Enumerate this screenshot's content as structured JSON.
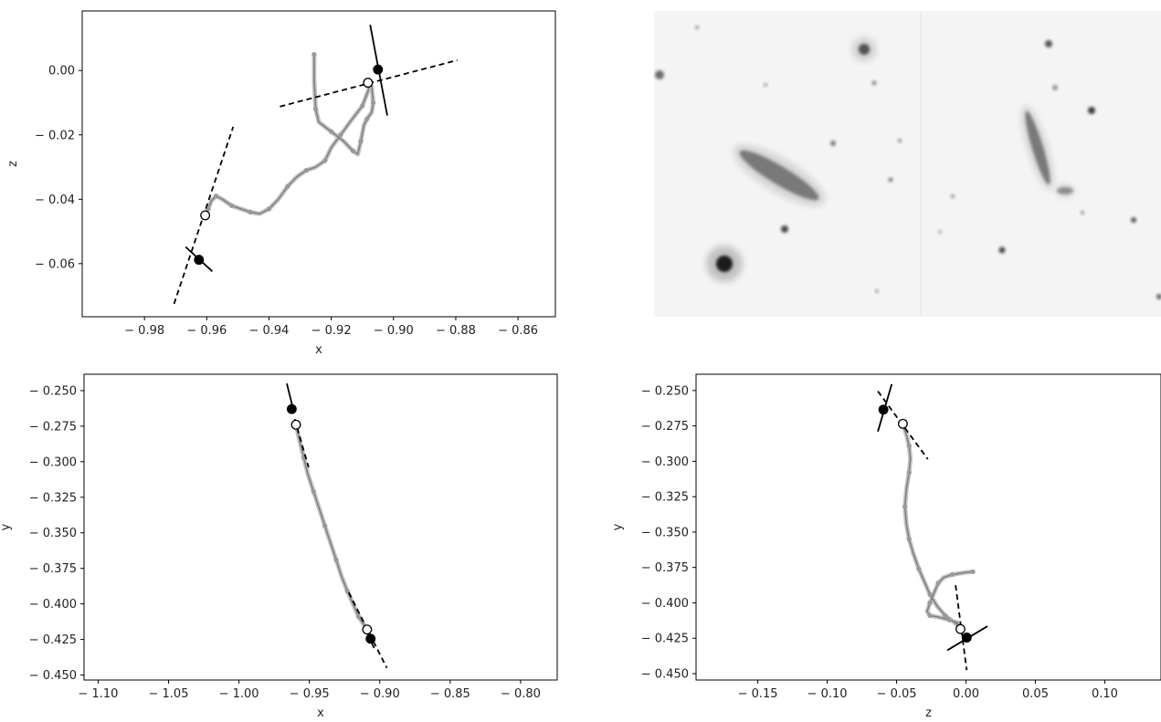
{
  "chart_data": [
    {
      "type": "line",
      "panel": "top-left",
      "xlabel": "x",
      "ylabel": "z",
      "xlim": [
        -1.0,
        -0.848
      ],
      "ylim": [
        -0.0765,
        0.0185
      ],
      "xticks": [
        -0.98,
        -0.96,
        -0.94,
        -0.92,
        -0.9,
        -0.88,
        -0.86
      ],
      "yticks": [
        0.0,
        -0.02,
        -0.04,
        -0.06
      ],
      "series": [
        {
          "role": "trajectory",
          "color": "#888888",
          "points": [
            [
              -0.9255,
              0.005
            ],
            [
              -0.9255,
              -0.003
            ],
            [
              -0.925,
              -0.012
            ],
            [
              -0.924,
              -0.016
            ],
            [
              -0.92,
              -0.019
            ],
            [
              -0.916,
              -0.022
            ],
            [
              -0.913,
              -0.025
            ],
            [
              -0.9115,
              -0.026
            ],
            [
              -0.9105,
              -0.022
            ],
            [
              -0.9095,
              -0.017
            ],
            [
              -0.9085,
              -0.015
            ],
            [
              -0.907,
              -0.013
            ],
            [
              -0.9065,
              -0.01
            ],
            [
              -0.907,
              -0.005
            ],
            [
              -0.908,
              -0.003
            ],
            [
              -0.908,
              -0.006
            ],
            [
              -0.91,
              -0.011
            ],
            [
              -0.914,
              -0.016
            ],
            [
              -0.917,
              -0.02
            ],
            [
              -0.92,
              -0.024
            ],
            [
              -0.922,
              -0.028
            ],
            [
              -0.925,
              -0.03
            ],
            [
              -0.928,
              -0.031
            ],
            [
              -0.931,
              -0.033
            ],
            [
              -0.934,
              -0.036
            ],
            [
              -0.937,
              -0.04
            ],
            [
              -0.94,
              -0.043
            ],
            [
              -0.943,
              -0.0445
            ],
            [
              -0.946,
              -0.044
            ],
            [
              -0.949,
              -0.043
            ],
            [
              -0.952,
              -0.042
            ],
            [
              -0.955,
              -0.04
            ],
            [
              -0.957,
              -0.039
            ],
            [
              -0.9585,
              -0.0405
            ],
            [
              -0.9595,
              -0.043
            ],
            [
              -0.9605,
              -0.045
            ]
          ]
        }
      ],
      "lines": [
        {
          "style": "dashed",
          "from": [
            -0.9365,
            -0.0112
          ],
          "to": [
            -0.8795,
            0.0032
          ]
        },
        {
          "style": "solid",
          "from": [
            -0.9075,
            0.0142
          ],
          "to": [
            -0.902,
            -0.014
          ]
        },
        {
          "style": "dashed",
          "from": [
            -0.9705,
            -0.0725
          ],
          "to": [
            -0.9515,
            -0.0175
          ]
        },
        {
          "style": "solid",
          "from": [
            -0.9668,
            -0.0548
          ],
          "to": [
            -0.9582,
            -0.0624
          ]
        }
      ],
      "markers": [
        {
          "fill": "white",
          "x": -0.9082,
          "y": -0.0038
        },
        {
          "fill": "black",
          "x": -0.905,
          "y": 0.0003
        },
        {
          "fill": "white",
          "x": -0.9605,
          "y": -0.045
        },
        {
          "fill": "black",
          "x": -0.9625,
          "y": -0.0588
        }
      ]
    },
    {
      "type": "line",
      "panel": "bottom-left",
      "xlabel": "x",
      "ylabel": "y",
      "xlim": [
        -1.11,
        -0.774
      ],
      "ylim": [
        -0.4535,
        -0.2385
      ],
      "xticks": [
        -1.1,
        -1.05,
        -1.0,
        -0.95,
        -0.9,
        -0.85,
        -0.8
      ],
      "yticks": [
        -0.25,
        -0.275,
        -0.3,
        -0.325,
        -0.35,
        -0.375,
        -0.4,
        -0.425,
        -0.45
      ],
      "series": [
        {
          "role": "trajectory",
          "color": "#888888",
          "points": [
            [
              -0.9595,
              -0.274
            ],
            [
              -0.957,
              -0.285
            ],
            [
              -0.954,
              -0.297
            ],
            [
              -0.951,
              -0.309
            ],
            [
              -0.947,
              -0.321
            ],
            [
              -0.943,
              -0.333
            ],
            [
              -0.939,
              -0.345
            ],
            [
              -0.935,
              -0.357
            ],
            [
              -0.931,
              -0.369
            ],
            [
              -0.927,
              -0.381
            ],
            [
              -0.923,
              -0.391
            ],
            [
              -0.919,
              -0.4
            ],
            [
              -0.915,
              -0.409
            ],
            [
              -0.911,
              -0.415
            ],
            [
              -0.909,
              -0.418
            ]
          ]
        }
      ],
      "lines": [
        {
          "style": "solid",
          "from": [
            -0.966,
            -0.245
          ],
          "to": [
            -0.961,
            -0.265
          ]
        },
        {
          "style": "dashed",
          "from": [
            -0.9605,
            -0.27
          ],
          "to": [
            -0.9505,
            -0.304
          ]
        },
        {
          "style": "dashed",
          "from": [
            -0.922,
            -0.392
          ],
          "to": [
            -0.895,
            -0.445
          ]
        },
        {
          "style": "solid",
          "from": [
            -0.91,
            -0.418
          ],
          "to": [
            -0.904,
            -0.431
          ]
        }
      ],
      "markers": [
        {
          "fill": "black",
          "x": -0.9625,
          "y": -0.263
        },
        {
          "fill": "white",
          "x": -0.9595,
          "y": -0.274
        },
        {
          "fill": "white",
          "x": -0.909,
          "y": -0.418
        },
        {
          "fill": "black",
          "x": -0.9065,
          "y": -0.4245
        }
      ]
    },
    {
      "type": "line",
      "panel": "bottom-right",
      "xlabel": "z",
      "ylabel": "y",
      "xlim": [
        -0.1945,
        0.1405
      ],
      "ylim": [
        -0.4545,
        -0.2385
      ],
      "xticks": [
        -0.15,
        -0.1,
        -0.05,
        0.0,
        0.05,
        0.1
      ],
      "yticks": [
        -0.25,
        -0.275,
        -0.3,
        -0.325,
        -0.35,
        -0.375,
        -0.4,
        -0.425,
        -0.45
      ],
      "series": [
        {
          "role": "trajectory",
          "color": "#888888",
          "points": [
            [
              0.005,
              -0.378
            ],
            [
              0.0,
              -0.3785
            ],
            [
              -0.01,
              -0.38
            ],
            [
              -0.016,
              -0.382
            ],
            [
              -0.02,
              -0.386
            ],
            [
              -0.023,
              -0.393
            ],
            [
              -0.026,
              -0.4
            ],
            [
              -0.028,
              -0.406
            ],
            [
              -0.026,
              -0.409
            ],
            [
              -0.02,
              -0.41
            ],
            [
              -0.012,
              -0.412
            ],
            [
              -0.006,
              -0.414
            ],
            [
              -0.004,
              -0.418
            ],
            [
              -0.008,
              -0.414
            ],
            [
              -0.015,
              -0.409
            ],
            [
              -0.021,
              -0.402
            ],
            [
              -0.026,
              -0.394
            ],
            [
              -0.03,
              -0.385
            ],
            [
              -0.034,
              -0.376
            ],
            [
              -0.038,
              -0.365
            ],
            [
              -0.041,
              -0.355
            ],
            [
              -0.043,
              -0.344
            ],
            [
              -0.044,
              -0.332
            ],
            [
              -0.043,
              -0.32
            ],
            [
              -0.041,
              -0.308
            ],
            [
              -0.04,
              -0.298
            ],
            [
              -0.041,
              -0.289
            ],
            [
              -0.043,
              -0.281
            ],
            [
              -0.0455,
              -0.274
            ]
          ]
        }
      ],
      "lines": [
        {
          "style": "dashed",
          "from": [
            -0.0635,
            -0.2505
          ],
          "to": [
            -0.0275,
            -0.2985
          ]
        },
        {
          "style": "solid",
          "from": [
            -0.0535,
            -0.2455
          ],
          "to": [
            -0.0635,
            -0.279
          ]
        },
        {
          "style": "dashed",
          "from": [
            -0.0075,
            -0.3875
          ],
          "to": [
            0.0005,
            -0.4475
          ]
        },
        {
          "style": "solid",
          "from": [
            -0.0135,
            -0.4335
          ],
          "to": [
            0.0155,
            -0.4165
          ]
        }
      ],
      "markers": [
        {
          "fill": "white",
          "x": -0.0455,
          "y": -0.2735
        },
        {
          "fill": "black",
          "x": -0.0595,
          "y": -0.2635
        },
        {
          "fill": "white",
          "x": -0.004,
          "y": -0.4185
        },
        {
          "fill": "black",
          "x": 0.0005,
          "y": -0.4245
        }
      ]
    }
  ],
  "image_panel": {
    "description_free": true,
    "blobs": [
      {
        "kind": "star",
        "cx": 722,
        "cy": 82,
        "r": 5,
        "opacity": 0.55
      },
      {
        "kind": "star",
        "cx": 763,
        "cy": 30,
        "r": 2,
        "opacity": 0.4
      },
      {
        "kind": "star",
        "cx": 946,
        "cy": 54,
        "r": 6,
        "opacity": 0.6
      },
      {
        "kind": "star",
        "cx": 838,
        "cy": 93,
        "r": 2,
        "opacity": 0.35
      },
      {
        "kind": "star",
        "cx": 957,
        "cy": 91,
        "r": 2.5,
        "opacity": 0.45
      },
      {
        "kind": "star",
        "cx": 912,
        "cy": 157,
        "r": 3,
        "opacity": 0.5
      },
      {
        "kind": "star",
        "cx": 985,
        "cy": 154,
        "r": 2,
        "opacity": 0.45
      },
      {
        "kind": "star",
        "cx": 975,
        "cy": 197,
        "r": 2.5,
        "opacity": 0.5
      },
      {
        "kind": "star",
        "cx": 859,
        "cy": 251,
        "r": 4,
        "opacity": 0.7
      },
      {
        "kind": "star",
        "cx": 960,
        "cy": 319,
        "r": 2,
        "opacity": 0.35
      },
      {
        "kind": "star",
        "cx": 793,
        "cy": 289,
        "r": 9,
        "opacity": 0.85
      },
      {
        "kind": "star",
        "cx": 1148,
        "cy": 48,
        "r": 4,
        "opacity": 0.65
      },
      {
        "kind": "star",
        "cx": 1195,
        "cy": 121,
        "r": 4,
        "opacity": 0.75
      },
      {
        "kind": "star",
        "cx": 1155,
        "cy": 96,
        "r": 3,
        "opacity": 0.4
      },
      {
        "kind": "star",
        "cx": 1043,
        "cy": 215,
        "r": 2,
        "opacity": 0.4
      },
      {
        "kind": "star",
        "cx": 1097,
        "cy": 274,
        "r": 3.5,
        "opacity": 0.7
      },
      {
        "kind": "star",
        "cx": 1241,
        "cy": 241,
        "r": 3,
        "opacity": 0.65
      },
      {
        "kind": "star",
        "cx": 1185,
        "cy": 233,
        "r": 2,
        "opacity": 0.4
      },
      {
        "kind": "star",
        "cx": 1269,
        "cy": 325,
        "r": 3,
        "opacity": 0.6
      },
      {
        "kind": "star",
        "cx": 1029,
        "cy": 254,
        "r": 2,
        "opacity": 0.3
      },
      {
        "kind": "galaxy",
        "cx": 853,
        "cy": 192,
        "rx": 50,
        "ry": 10,
        "rotate": 31,
        "opacity": 0.55
      },
      {
        "kind": "galaxy",
        "cx": 1136,
        "cy": 162,
        "rx": 42,
        "ry": 6,
        "rotate": 73,
        "opacity": 0.55
      },
      {
        "kind": "galaxy",
        "cx": 1166,
        "cy": 209,
        "rx": 9,
        "ry": 4,
        "rotate": 0,
        "opacity": 0.45
      }
    ]
  }
}
